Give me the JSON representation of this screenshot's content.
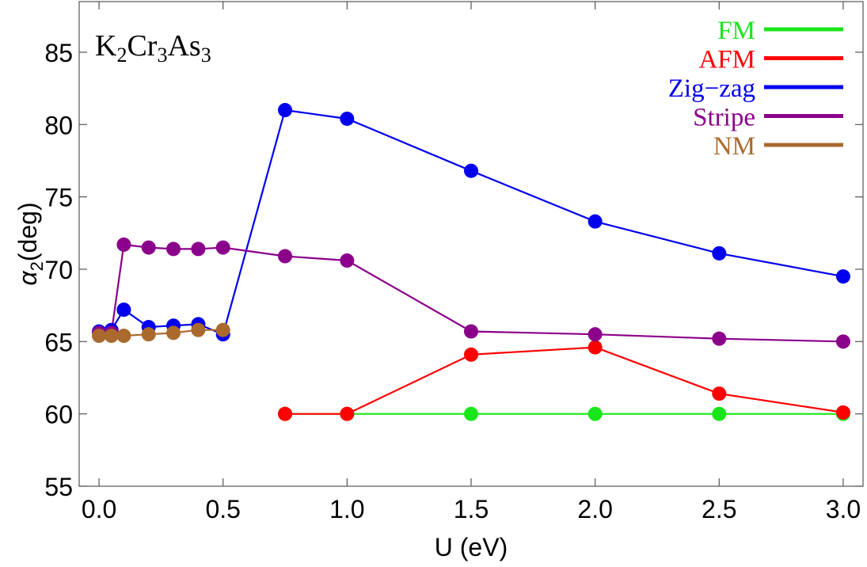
{
  "chart_data": {
    "type": "line",
    "title": {
      "base1": "K",
      "sub1": "2",
      "base2": "Cr",
      "sub2": "3",
      "base3": "As",
      "sub3": "3"
    },
    "xlabel": "U (eV)",
    "ylabel": {
      "symbol": "α",
      "sub": "2",
      "rest": "(deg)"
    },
    "xlim": [
      -0.08,
      3.08
    ],
    "ylim": [
      55,
      88.5
    ],
    "xticks": [
      0.0,
      0.5,
      1.0,
      1.5,
      2.0,
      2.5,
      3.0
    ],
    "xtick_labels": [
      "0.0",
      "0.5",
      "1.0",
      "1.5",
      "2.0",
      "2.5",
      "3.0"
    ],
    "yticks": [
      55,
      60,
      65,
      70,
      75,
      80,
      85
    ],
    "ytick_labels": [
      "55",
      "60",
      "65",
      "70",
      "75",
      "80",
      "85"
    ],
    "legend_position": "top-right",
    "series": [
      {
        "name": "FM",
        "color": "#19e619",
        "x": [
          0.75,
          1.0,
          1.5,
          2.0,
          2.5,
          3.0
        ],
        "y": [
          60.0,
          60.0,
          60.0,
          60.0,
          60.0,
          60.0
        ]
      },
      {
        "name": "AFM",
        "color": "#ff0000",
        "x": [
          0.75,
          1.0,
          1.5,
          2.0,
          2.5,
          3.0
        ],
        "y": [
          60.0,
          60.0,
          64.1,
          64.6,
          61.4,
          60.1
        ]
      },
      {
        "name": "Zig−zag",
        "color": "#0000ee",
        "x": [
          0.0,
          0.05,
          0.1,
          0.2,
          0.3,
          0.4,
          0.5,
          0.75,
          1.0,
          1.5,
          2.0,
          2.5,
          3.0
        ],
        "y": [
          65.7,
          65.8,
          67.2,
          66.0,
          66.1,
          66.2,
          65.5,
          81.0,
          80.4,
          76.8,
          73.3,
          71.1,
          69.5
        ]
      },
      {
        "name": "Stripe",
        "color": "#8b008b",
        "x": [
          0.0,
          0.05,
          0.1,
          0.2,
          0.3,
          0.4,
          0.5,
          0.75,
          1.0,
          1.5,
          2.0,
          2.5,
          3.0
        ],
        "y": [
          65.6,
          65.6,
          71.7,
          71.5,
          71.4,
          71.4,
          71.5,
          70.9,
          70.6,
          65.7,
          65.5,
          65.2,
          65.0
        ]
      },
      {
        "name": "NM",
        "color": "#aa6a2e",
        "x": [
          0.0,
          0.05,
          0.1,
          0.2,
          0.3,
          0.4,
          0.5
        ],
        "y": [
          65.4,
          65.4,
          65.4,
          65.5,
          65.6,
          65.8,
          65.8
        ]
      }
    ]
  }
}
